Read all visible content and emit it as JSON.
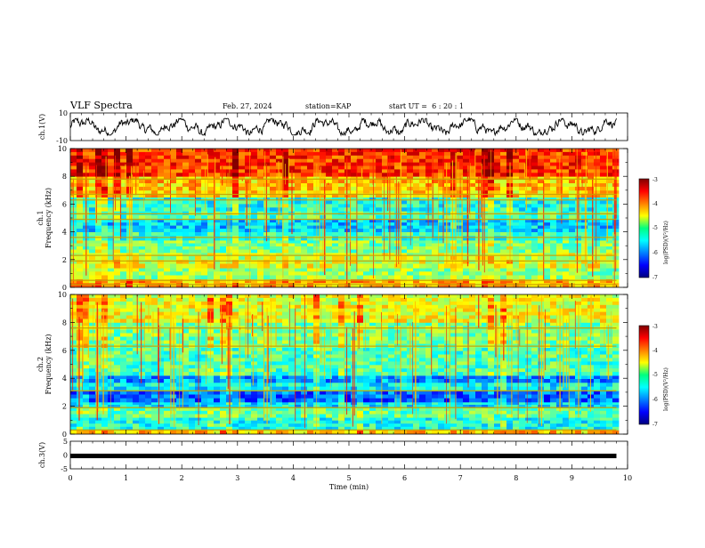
{
  "header": {
    "title": "VLF Spectra",
    "date": "Feb. 27, 2024",
    "station": "station=KAP",
    "start_ut": "start UT =  6 : 20 : 1"
  },
  "chart_data": [
    {
      "type": "line",
      "name": "ch1-waveform",
      "ylabel": "ch.1(V)",
      "ylim": [
        -10,
        10
      ],
      "yticks": [
        "10",
        "-10"
      ],
      "xlim": [
        0,
        10
      ],
      "data_extent_x": [
        0,
        9.8
      ],
      "y_range_observed": [
        -6,
        6
      ]
    },
    {
      "type": "heatmap",
      "name": "ch1-spectrogram",
      "ylabel": "ch.1\nFrequency (kHz)",
      "ylim": [
        0,
        10
      ],
      "yticks": [
        "0",
        "2",
        "4",
        "6",
        "8",
        "10"
      ],
      "xlim": [
        0,
        10
      ],
      "data_extent_x": [
        0,
        9.8
      ],
      "colorscale": {
        "label": "log(PSD)(V²/Hz)",
        "range": [
          -7,
          -3
        ],
        "ticks": [
          "-3",
          "-4",
          "-5",
          "-6",
          "-7"
        ]
      },
      "bands": [
        {
          "f": [
            0.0,
            0.6
          ],
          "level": -4.2
        },
        {
          "f": [
            0.6,
            1.4
          ],
          "level": -4.9
        },
        {
          "f": [
            1.4,
            2.0
          ],
          "level": -4.6
        },
        {
          "f": [
            2.0,
            2.5
          ],
          "level": -4.7
        },
        {
          "f": [
            2.5,
            3.4
          ],
          "level": -5.0
        },
        {
          "f": [
            3.4,
            4.0
          ],
          "level": -5.3
        },
        {
          "f": [
            4.0,
            4.9
          ],
          "level": -5.7
        },
        {
          "f": [
            4.9,
            5.5
          ],
          "level": -5.2
        },
        {
          "f": [
            5.5,
            6.5
          ],
          "level": -5.4
        },
        {
          "f": [
            6.5,
            7.0
          ],
          "level": -4.4
        },
        {
          "f": [
            7.0,
            8.0
          ],
          "level": -4.3
        },
        {
          "f": [
            8.0,
            10.0
          ],
          "level": -3.7
        }
      ],
      "horizontal_lines_khz": [
        0.2,
        0.5,
        1.9,
        2.3,
        3.6,
        4.9,
        5.3,
        6.3,
        6.7,
        7.8
      ]
    },
    {
      "type": "heatmap",
      "name": "ch2-spectrogram",
      "ylabel": "ch.2\nFrequency (kHz)",
      "ylim": [
        0,
        10
      ],
      "yticks": [
        "0",
        "2",
        "4",
        "6",
        "8",
        "10"
      ],
      "xlim": [
        0,
        10
      ],
      "data_extent_x": [
        0,
        9.8
      ],
      "colorscale": {
        "label": "log(PSD)(V²/Hz)",
        "range": [
          -7,
          -3
        ],
        "ticks": [
          "-3",
          "-4",
          "-5",
          "-6",
          "-7"
        ]
      },
      "bands": [
        {
          "f": [
            0.0,
            0.3
          ],
          "level": -4.3
        },
        {
          "f": [
            0.3,
            1.2
          ],
          "level": -5.4
        },
        {
          "f": [
            1.2,
            1.9
          ],
          "level": -5.1
        },
        {
          "f": [
            1.9,
            2.3
          ],
          "level": -5.6
        },
        {
          "f": [
            2.3,
            3.1
          ],
          "level": -6.1
        },
        {
          "f": [
            3.1,
            3.7
          ],
          "level": -5.5
        },
        {
          "f": [
            3.7,
            4.2
          ],
          "level": -5.9
        },
        {
          "f": [
            4.2,
            6.2
          ],
          "level": -5.2
        },
        {
          "f": [
            6.2,
            8.0
          ],
          "level": -5.0
        },
        {
          "f": [
            8.0,
            10.0
          ],
          "level": -4.6
        }
      ],
      "horizontal_lines_khz": [
        0.3,
        1.9,
        3.1,
        6.3,
        7.6
      ]
    },
    {
      "type": "line",
      "name": "ch3-signal",
      "ylabel": "ch.3(V)",
      "ylim": [
        -5,
        5
      ],
      "yticks": [
        "5",
        "0",
        "-5"
      ],
      "xlim": [
        0,
        10
      ],
      "data_extent_x": [
        0,
        9.8
      ],
      "y_band": [
        -0.5,
        0.5
      ],
      "xlabel": "Time (min)",
      "xticks": [
        "0",
        "1",
        "2",
        "3",
        "4",
        "5",
        "6",
        "7",
        "8",
        "9",
        "10"
      ]
    }
  ]
}
